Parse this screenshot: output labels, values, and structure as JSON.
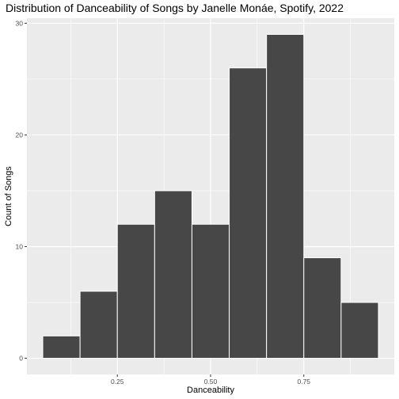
{
  "chart_data": {
    "type": "bar",
    "title": "Distribution of Danceability of Songs by Janelle Monáe, Spotify, 2022",
    "xlabel": "Danceability",
    "ylabel": "Count of Songs",
    "bins": [
      {
        "x0": 0.05,
        "x1": 0.15,
        "count": 2
      },
      {
        "x0": 0.15,
        "x1": 0.25,
        "count": 6
      },
      {
        "x0": 0.25,
        "x1": 0.35,
        "count": 12
      },
      {
        "x0": 0.35,
        "x1": 0.45,
        "count": 15
      },
      {
        "x0": 0.45,
        "x1": 0.55,
        "count": 12
      },
      {
        "x0": 0.55,
        "x1": 0.65,
        "count": 26
      },
      {
        "x0": 0.65,
        "x1": 0.75,
        "count": 29
      },
      {
        "x0": 0.75,
        "x1": 0.85,
        "count": 9
      },
      {
        "x0": 0.85,
        "x1": 0.95,
        "count": 5
      }
    ],
    "xlim": [
      0.0075,
      0.9925
    ],
    "ylim": [
      -1.45,
      30.45
    ],
    "x_ticks": [
      {
        "value": 0.25,
        "label": "0.25"
      },
      {
        "value": 0.5,
        "label": "0.50"
      },
      {
        "value": 0.75,
        "label": "0.75"
      }
    ],
    "x_minor_ticks": [
      0.125,
      0.375,
      0.625,
      0.875
    ],
    "y_ticks": [
      {
        "value": 0,
        "label": "0"
      },
      {
        "value": 10,
        "label": "10"
      },
      {
        "value": 20,
        "label": "20"
      },
      {
        "value": 30,
        "label": "30"
      }
    ],
    "y_minor_ticks": [
      5,
      15,
      25
    ],
    "grid": true,
    "legend": "none",
    "colors": {
      "panel": "#ebebeb",
      "grid": "#ffffff",
      "bar_fill": "#474747",
      "bar_outline": "#ffffff",
      "tick_text": "#4d4d4d",
      "tick_mark": "#333333"
    }
  }
}
